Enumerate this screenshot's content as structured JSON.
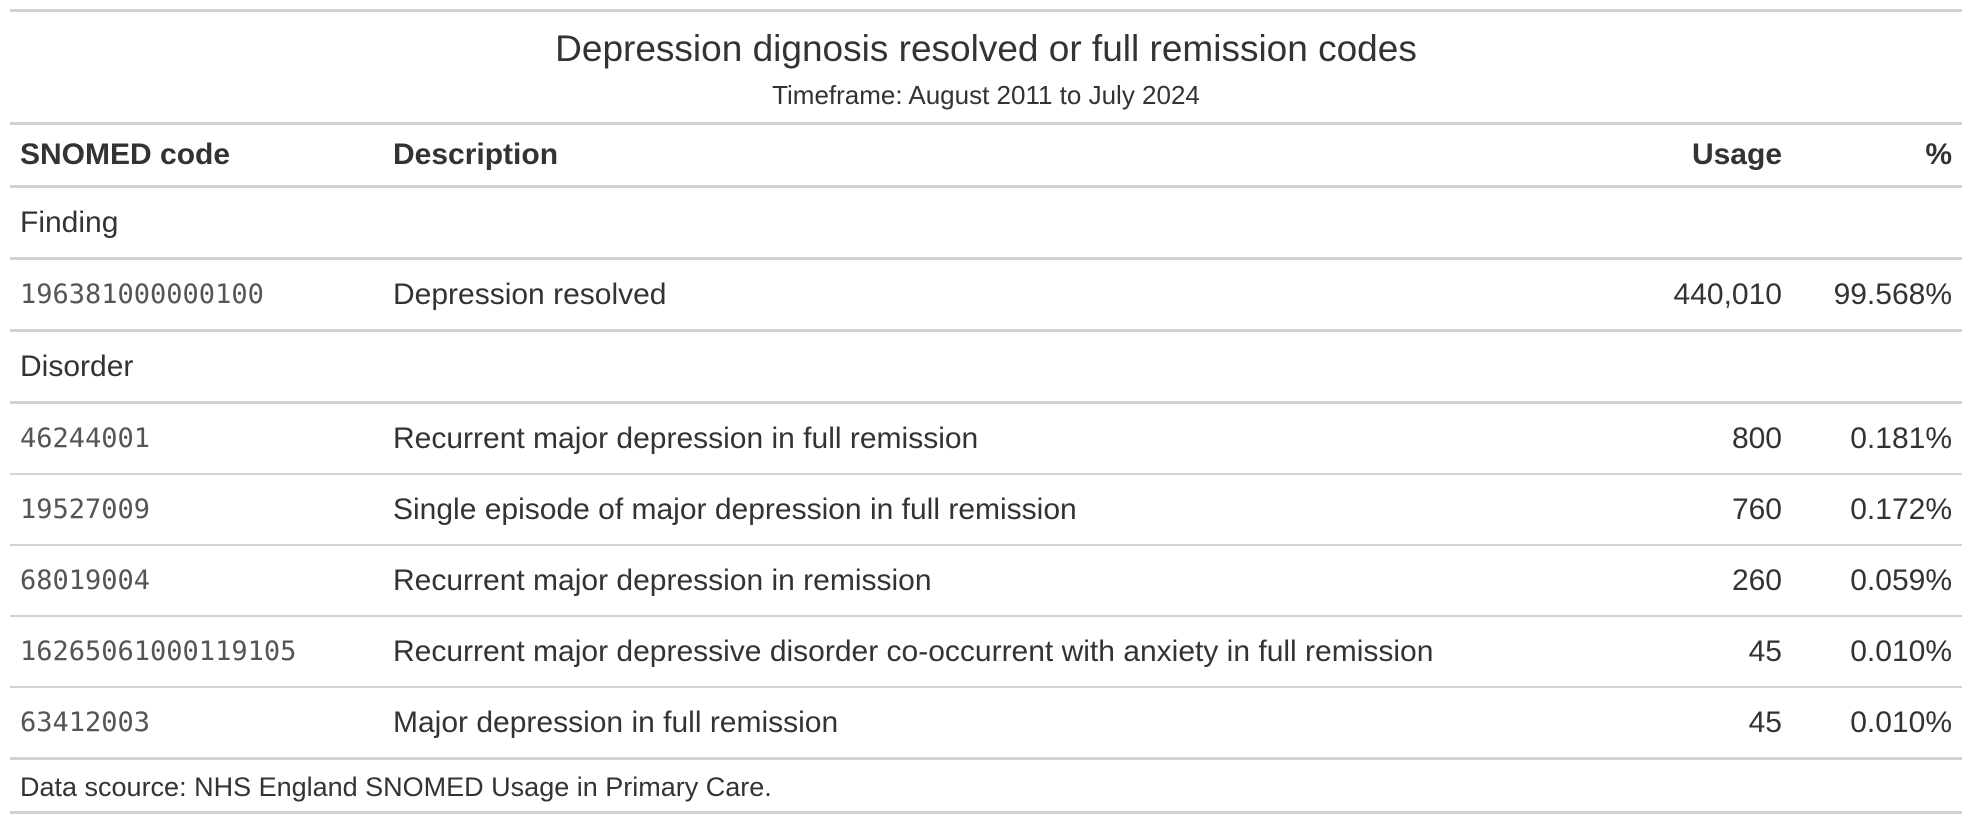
{
  "header": {
    "title": "Depression dignosis resolved or full remission codes",
    "subtitle": "Timeframe: August 2011 to July 2024"
  },
  "columns": {
    "code": "SNOMED code",
    "description": "Description",
    "usage": "Usage",
    "percent": "%"
  },
  "groups": [
    {
      "label": "Finding",
      "rows": [
        {
          "code": "196381000000100",
          "description": "Depression resolved",
          "usage": "440,010",
          "percent": "99.568%"
        }
      ]
    },
    {
      "label": "Disorder",
      "rows": [
        {
          "code": "46244001",
          "description": "Recurrent major depression in full remission",
          "usage": "800",
          "percent": "0.181%"
        },
        {
          "code": "19527009",
          "description": "Single episode of major depression in full remission",
          "usage": "760",
          "percent": "0.172%"
        },
        {
          "code": "68019004",
          "description": "Recurrent major depression in remission",
          "usage": "260",
          "percent": "0.059%"
        },
        {
          "code": "16265061000119105",
          "description": "Recurrent major depressive disorder co-occurrent with anxiety in full remission",
          "usage": "45",
          "percent": "0.010%"
        },
        {
          "code": "63412003",
          "description": "Major depression in full remission",
          "usage": "45",
          "percent": "0.010%"
        }
      ]
    }
  ],
  "footer": {
    "source": "Data scource: NHS England SNOMED Usage in Primary Care."
  },
  "colors": {
    "text": "#333333",
    "code_text": "#555555",
    "rule": "#d3d3d3",
    "background": "#ffffff"
  }
}
